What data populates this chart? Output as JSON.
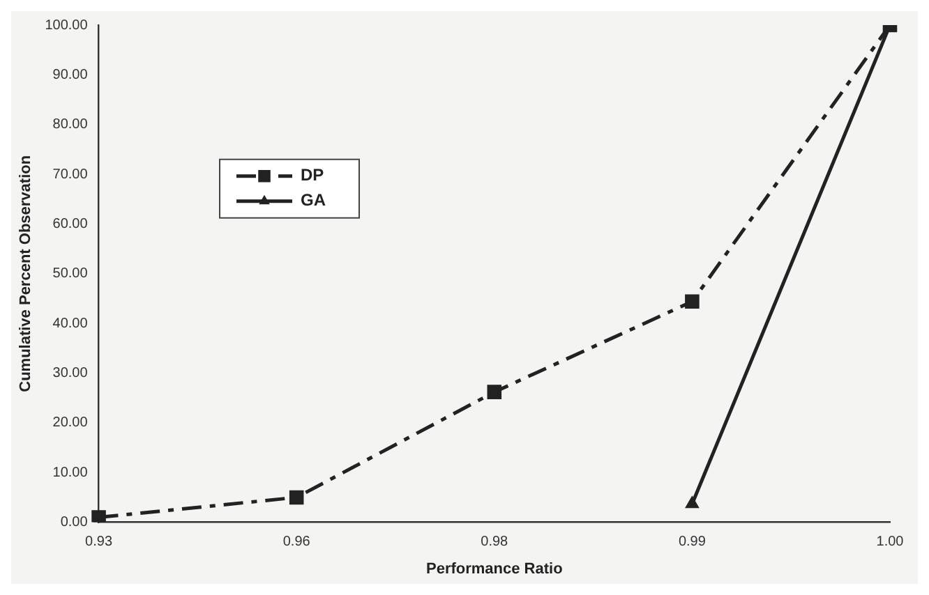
{
  "chart_data": {
    "type": "line",
    "xlabel": "Performance Ratio",
    "ylabel": "Cumulative Percent Observation",
    "categories": [
      "0.93",
      "0.96",
      "0.98",
      "0.99",
      "1.00"
    ],
    "series": [
      {
        "name": "DP",
        "color": "#222222",
        "values": [
          1,
          5,
          26.2,
          44.4,
          100
        ],
        "marker": "square",
        "line_style": "dashed"
      },
      {
        "name": "GA",
        "color": "#222222",
        "values": [
          null,
          null,
          null,
          3.7,
          100
        ],
        "marker": "triangle",
        "line_style": "solid"
      }
    ],
    "ylim": [
      0,
      100
    ],
    "yticks": [
      {
        "value": 0,
        "label": "0.00"
      },
      {
        "value": 10,
        "label": "10.00"
      },
      {
        "value": 20,
        "label": "20.00"
      },
      {
        "value": 30,
        "label": "30.00"
      },
      {
        "value": 40,
        "label": "40.00"
      },
      {
        "value": 50,
        "label": "50.00"
      },
      {
        "value": 60,
        "label": "60.00"
      },
      {
        "value": 70,
        "label": "70.00"
      },
      {
        "value": 80,
        "label": "80.00"
      },
      {
        "value": 90,
        "label": "90.00"
      },
      {
        "value": 100,
        "label": "100.00"
      }
    ],
    "grid": false,
    "legend": "top left"
  }
}
